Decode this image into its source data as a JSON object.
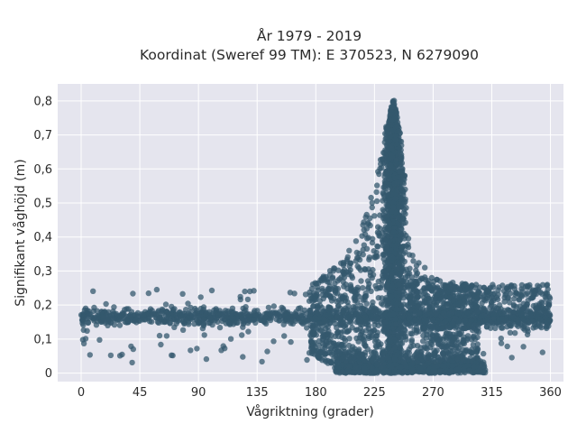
{
  "chart_data": {
    "type": "scatter",
    "title": [
      "År 1979 - 2019",
      "Koordinat (Sweref 99 TM): E 370523, N 6279090"
    ],
    "xlabel": "Vågriktning (grader)",
    "ylabel": "Signifikant våghöjd (m)",
    "xlim": [
      -18,
      370
    ],
    "ylim": [
      -0.025,
      0.85
    ],
    "xticks": [
      0,
      45,
      90,
      135,
      180,
      225,
      270,
      315,
      360
    ],
    "xtick_labels": [
      "0",
      "45",
      "90",
      "135",
      "180",
      "225",
      "270",
      "315",
      "360"
    ],
    "yticks": [
      0,
      0.1,
      0.2,
      0.3,
      0.4,
      0.5,
      0.6,
      0.7,
      0.8
    ],
    "ytick_labels": [
      "0",
      "0,1",
      "0,2",
      "0,3",
      "0,4",
      "0,5",
      "0,6",
      "0,7",
      "0,8"
    ],
    "grid": true,
    "background": "#e5e5ee",
    "marker_color": "#34586e",
    "series": [
      {
        "values_envelope": [
          {
            "x": 0,
            "y_min": 0.12,
            "y_max": 0.22
          },
          {
            "x": 45,
            "y_min": 0.12,
            "y_max": 0.22
          },
          {
            "x": 90,
            "y_min": 0.12,
            "y_max": 0.22
          },
          {
            "x": 135,
            "y_min": 0.12,
            "y_max": 0.23
          },
          {
            "x": 180,
            "y_min": 0.05,
            "y_max": 0.27
          },
          {
            "x": 200,
            "y_min": 0.0,
            "y_max": 0.33
          },
          {
            "x": 215,
            "y_min": 0.0,
            "y_max": 0.42
          },
          {
            "x": 225,
            "y_min": 0.0,
            "y_max": 0.55
          },
          {
            "x": 235,
            "y_min": 0.0,
            "y_max": 0.75
          },
          {
            "x": 240,
            "y_min": 0.0,
            "y_max": 0.81
          },
          {
            "x": 245,
            "y_min": 0.0,
            "y_max": 0.7
          },
          {
            "x": 255,
            "y_min": 0.0,
            "y_max": 0.35
          },
          {
            "x": 270,
            "y_min": 0.0,
            "y_max": 0.28
          },
          {
            "x": 315,
            "y_min": 0.02,
            "y_max": 0.25
          },
          {
            "x": 360,
            "y_min": 0.12,
            "y_max": 0.23
          }
        ]
      }
    ]
  }
}
